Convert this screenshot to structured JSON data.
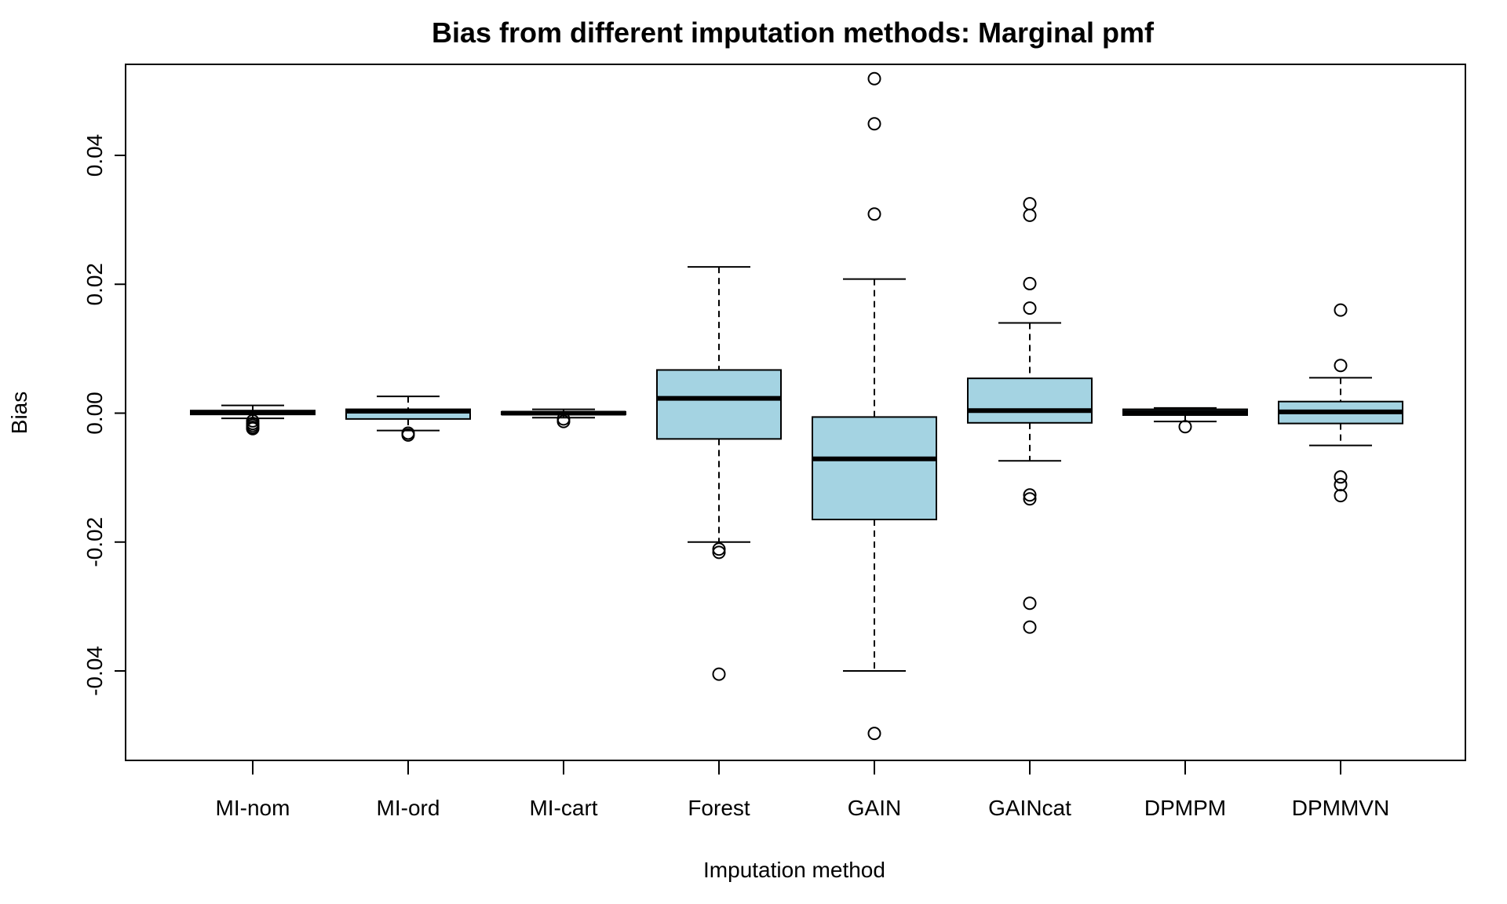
{
  "chart_data": {
    "type": "boxplot",
    "title": "Bias from different imputation methods: Marginal pmf",
    "xlabel": "Imputation method",
    "ylabel": "Bias",
    "ylim": [
      -0.055,
      0.053
    ],
    "y_ticks": [
      -0.04,
      -0.02,
      0.0,
      0.02,
      0.04
    ],
    "y_tick_labels": [
      "-0.04",
      "-0.02",
      "0.00",
      "0.02",
      "0.04"
    ],
    "grid": false,
    "legend": "none",
    "box_fill": "#a4d3e2",
    "categories": [
      "MI-nom",
      "MI-ord",
      "MI-cart",
      "Forest",
      "GAIN",
      "GAINcat",
      "DPMPM",
      "DPMMVN"
    ],
    "boxes": [
      {
        "name": "MI-nom",
        "whisker_low": -0.0008,
        "q1": -0.0002,
        "median": 0.0001,
        "q3": 0.0004,
        "whisker_high": 0.0012,
        "outliers": [
          -0.0012,
          -0.0016,
          -0.0019,
          -0.0022,
          -0.0024
        ]
      },
      {
        "name": "MI-ord",
        "whisker_low": -0.0027,
        "q1": -0.0009,
        "median": 0.0003,
        "q3": 0.0006,
        "whisker_high": 0.0026,
        "outliers": [
          -0.0031,
          -0.0034
        ]
      },
      {
        "name": "MI-cart",
        "whisker_low": -0.0007,
        "q1": -0.0002,
        "median": 0.0,
        "q3": 0.0002,
        "whisker_high": 0.0006,
        "outliers": [
          -0.0009,
          -0.0013
        ]
      },
      {
        "name": "Forest",
        "whisker_low": -0.02,
        "q1": -0.004,
        "median": 0.0023,
        "q3": 0.0067,
        "whisker_high": 0.0227,
        "outliers": [
          -0.0211,
          -0.0216,
          -0.0405
        ]
      },
      {
        "name": "GAIN",
        "whisker_low": -0.04,
        "q1": -0.0165,
        "median": -0.0071,
        "q3": -0.0006,
        "whisker_high": 0.0208,
        "outliers": [
          0.0309,
          0.0449,
          0.0519,
          -0.0497
        ]
      },
      {
        "name": "GAINcat",
        "whisker_low": -0.0074,
        "q1": -0.0015,
        "median": 0.0004,
        "q3": 0.0054,
        "whisker_high": 0.014,
        "outliers": [
          0.0163,
          0.0201,
          0.0307,
          0.0325,
          -0.0127,
          -0.0133,
          -0.0295,
          -0.0332
        ]
      },
      {
        "name": "DPMPM",
        "whisker_low": -0.0013,
        "q1": -0.0003,
        "median": 0.0001,
        "q3": 0.0006,
        "whisker_high": 0.0008,
        "outliers": [
          -0.0021
        ]
      },
      {
        "name": "DPMMVN",
        "whisker_low": -0.005,
        "q1": -0.0016,
        "median": 0.0002,
        "q3": 0.0018,
        "whisker_high": 0.0055,
        "outliers": [
          0.0074,
          0.016,
          -0.0099,
          -0.0111,
          -0.0128
        ]
      }
    ]
  }
}
